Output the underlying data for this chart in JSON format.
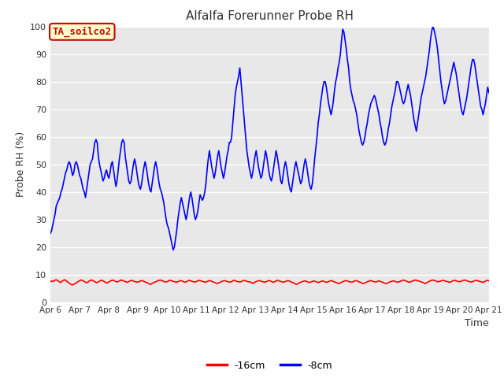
{
  "title": "Alfalfa Forerunner Probe RH",
  "ylabel": "Probe RH (%)",
  "xlabel": "Time",
  "ylim": [
    0,
    100
  ],
  "yticks": [
    0,
    10,
    20,
    30,
    40,
    50,
    60,
    70,
    80,
    90,
    100
  ],
  "xtick_labels": [
    "Apr 6",
    "Apr 7",
    "Apr 8",
    "Apr 9",
    "Apr 10",
    "Apr 11",
    "Apr 12",
    "Apr 13",
    "Apr 14",
    "Apr 15",
    "Apr 16",
    "Apr 17",
    "Apr 18",
    "Apr 19",
    "Apr 20",
    "Apr 21"
  ],
  "annotation_text": "TA_soilco2",
  "annotation_box_color": "#ffffcc",
  "annotation_border_color": "#cc0000",
  "annotation_text_color": "#cc0000",
  "bg_color": "#e8e8e8",
  "line_red_color": "#ff0000",
  "line_blue_color": "#0000ff",
  "legend_red_label": "-16cm",
  "legend_blue_label": "-8cm",
  "red_y": [
    7.5,
    7.8,
    7.6,
    8.0,
    8.2,
    7.9,
    7.5,
    7.2,
    7.6,
    8.0,
    8.2,
    7.8,
    7.4,
    7.0,
    6.6,
    6.3,
    6.5,
    6.8,
    7.1,
    7.5,
    7.8,
    8.1,
    8.0,
    7.7,
    7.4,
    7.1,
    7.4,
    7.8,
    8.1,
    8.0,
    7.7,
    7.4,
    7.1,
    7.4,
    7.7,
    8.0,
    7.9,
    7.6,
    7.3,
    7.0,
    7.3,
    7.6,
    7.9,
    8.1,
    7.9,
    7.6,
    7.4,
    7.6,
    7.9,
    8.1,
    7.9,
    7.7,
    7.5,
    7.3,
    7.5,
    7.8,
    8.0,
    7.8,
    7.6,
    7.5,
    7.3,
    7.5,
    7.7,
    7.9,
    7.8,
    7.5,
    7.3,
    7.1,
    6.8,
    6.5,
    6.8,
    7.1,
    7.3,
    7.5,
    7.8,
    8.0,
    8.1,
    7.9,
    7.7,
    7.5,
    7.4,
    7.6,
    7.9,
    8.0,
    7.8,
    7.6,
    7.5,
    7.3,
    7.5,
    7.7,
    7.9,
    7.8,
    7.5,
    7.3,
    7.5,
    7.8,
    8.0,
    7.8,
    7.6,
    7.5,
    7.4,
    7.6,
    7.8,
    8.0,
    7.8,
    7.6,
    7.5,
    7.3,
    7.5,
    7.7,
    7.9,
    7.8,
    7.5,
    7.3,
    7.1,
    6.8,
    7.0,
    7.2,
    7.5,
    7.7,
    7.9,
    7.8,
    7.6,
    7.5,
    7.3,
    7.5,
    7.8,
    8.0,
    7.8,
    7.6,
    7.5,
    7.4,
    7.6,
    7.8,
    8.0,
    7.8,
    7.6,
    7.5,
    7.4,
    7.2,
    6.9,
    7.2,
    7.5,
    7.7,
    7.9,
    7.8,
    7.6,
    7.5,
    7.3,
    7.5,
    7.7,
    7.9,
    7.8,
    7.5,
    7.3,
    7.5,
    7.8,
    8.0,
    7.8,
    7.6,
    7.5,
    7.3,
    7.5,
    7.7,
    7.9,
    7.8,
    7.5,
    7.3,
    7.1,
    6.8,
    6.5,
    6.8,
    7.1,
    7.3,
    7.5,
    7.7,
    7.8,
    7.6,
    7.4,
    7.2,
    7.4,
    7.6,
    7.8,
    7.6,
    7.4,
    7.2,
    7.4,
    7.6,
    7.8,
    7.6,
    7.4,
    7.3,
    7.5,
    7.7,
    7.9,
    7.7,
    7.5,
    7.3,
    7.1,
    6.8,
    7.0,
    7.2,
    7.5,
    7.7,
    7.9,
    7.8,
    7.6,
    7.5,
    7.3,
    7.5,
    7.7,
    7.9,
    7.8,
    7.5,
    7.3,
    7.1,
    6.8,
    7.0,
    7.2,
    7.5,
    7.7,
    7.9,
    7.8,
    7.6,
    7.5,
    7.4,
    7.6,
    7.8,
    7.6,
    7.4,
    7.2,
    7.0,
    6.8,
    7.0,
    7.3,
    7.5,
    7.7,
    7.8,
    7.6,
    7.5,
    7.3,
    7.5,
    7.7,
    7.9,
    8.1,
    7.9,
    7.7,
    7.5,
    7.3,
    7.5,
    7.7,
    7.9,
    8.1,
    8.0,
    7.8,
    7.7,
    7.5,
    7.3,
    7.1,
    6.8,
    7.1,
    7.4,
    7.7,
    7.9,
    8.1,
    8.0,
    7.8,
    7.6,
    7.5,
    7.6,
    7.8,
    8.0,
    7.9,
    7.7,
    7.6,
    7.4,
    7.3,
    7.5,
    7.8,
    8.0,
    7.9,
    7.7,
    7.6,
    7.5,
    7.7,
    7.9,
    8.1,
    8.0,
    7.8,
    7.6,
    7.5,
    7.4,
    7.6,
    7.8,
    8.0,
    7.9,
    7.7,
    7.6,
    7.4,
    7.3,
    7.5,
    7.8,
    8.0,
    7.8
  ],
  "blue_y": [
    25,
    26,
    28,
    30,
    32,
    35,
    36,
    37,
    38,
    40,
    41,
    43,
    45,
    47,
    48,
    50,
    51,
    50,
    48,
    46,
    47,
    50,
    51,
    50,
    48,
    46,
    45,
    43,
    41,
    40,
    38,
    41,
    44,
    47,
    50,
    51,
    52,
    55,
    58,
    59,
    58,
    53,
    50,
    48,
    46,
    44,
    45,
    47,
    48,
    46,
    45,
    47,
    50,
    51,
    48,
    45,
    42,
    44,
    48,
    52,
    55,
    58,
    59,
    58,
    53,
    50,
    47,
    44,
    43,
    44,
    47,
    50,
    52,
    50,
    47,
    44,
    42,
    41,
    43,
    46,
    49,
    51,
    49,
    46,
    43,
    41,
    40,
    43,
    46,
    49,
    51,
    49,
    46,
    43,
    41,
    40,
    38,
    36,
    33,
    30,
    28,
    27,
    25,
    23,
    21,
    19,
    20,
    23,
    26,
    30,
    33,
    36,
    38,
    36,
    34,
    32,
    30,
    32,
    35,
    38,
    40,
    38,
    35,
    32,
    30,
    31,
    33,
    36,
    39,
    38,
    37,
    38,
    40,
    43,
    48,
    52,
    55,
    52,
    49,
    47,
    45,
    47,
    50,
    53,
    55,
    52,
    49,
    47,
    45,
    47,
    50,
    53,
    55,
    58,
    58,
    60,
    65,
    70,
    75,
    78,
    80,
    82,
    85,
    80,
    75,
    70,
    65,
    60,
    55,
    52,
    49,
    47,
    45,
    47,
    50,
    53,
    55,
    52,
    49,
    47,
    45,
    46,
    49,
    52,
    55,
    53,
    50,
    47,
    45,
    44,
    46,
    49,
    52,
    55,
    53,
    50,
    47,
    44,
    43,
    46,
    49,
    51,
    49,
    46,
    43,
    41,
    40,
    43,
    46,
    49,
    51,
    49,
    47,
    45,
    43,
    44,
    47,
    50,
    52,
    50,
    47,
    44,
    42,
    41,
    43,
    47,
    52,
    56,
    60,
    65,
    68,
    72,
    75,
    78,
    80,
    80,
    78,
    75,
    72,
    70,
    68,
    70,
    73,
    77,
    80,
    82,
    85,
    87,
    90,
    95,
    99,
    98,
    95,
    92,
    88,
    85,
    80,
    77,
    75,
    73,
    72,
    70,
    68,
    65,
    62,
    60,
    58,
    57,
    58,
    60,
    63,
    65,
    68,
    70,
    72,
    73,
    74,
    75,
    74,
    72,
    70,
    68,
    65,
    63,
    60,
    58,
    57,
    58,
    60,
    63,
    65,
    68,
    71,
    73,
    75,
    77,
    80,
    80,
    79,
    77,
    75,
    73,
    72,
    73,
    75,
    77,
    79,
    77,
    75,
    72,
    69,
    66,
    64,
    62,
    65,
    68,
    71,
    74,
    76,
    78,
    80,
    82,
    85,
    88,
    91,
    95,
    98,
    100,
    99,
    97,
    95,
    92,
    88,
    84,
    80,
    77,
    74,
    72,
    73,
    75,
    77,
    79,
    81,
    83,
    85,
    87,
    85,
    83,
    80,
    77,
    74,
    71,
    69,
    68,
    70,
    72,
    74,
    77,
    80,
    83,
    86,
    88,
    88,
    86,
    83,
    80,
    77,
    74,
    71,
    70,
    68,
    70,
    72,
    75,
    78,
    76
  ]
}
